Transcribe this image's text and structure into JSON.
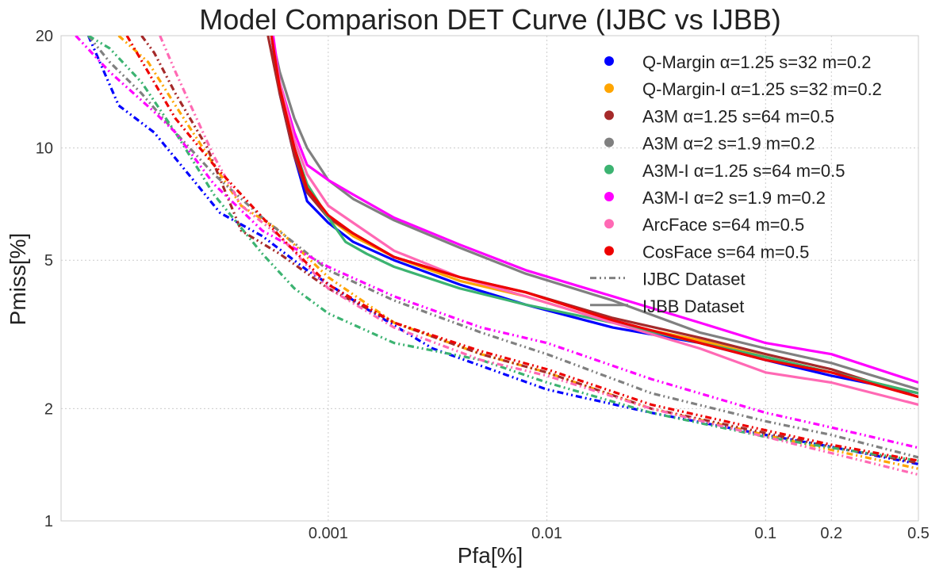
{
  "chart_data": {
    "type": "line",
    "title": "Model Comparison DET Curve (IJBC vs IJBB)",
    "xlabel": "Pfa[%]",
    "ylabel": "Pmiss[%]",
    "x_scale": "log",
    "y_scale": "log",
    "xlim": [
      6e-05,
      0.5
    ],
    "ylim": [
      1,
      20
    ],
    "x_ticks": [
      0.001,
      0.01,
      0.1,
      0.2,
      0.5
    ],
    "x_tick_labels": [
      "0.001",
      "0.01",
      "0.1",
      "0.2",
      "0.5"
    ],
    "y_ticks": [
      1,
      2,
      5,
      10,
      20
    ],
    "y_tick_labels": [
      "1",
      "2",
      "5",
      "10",
      "20"
    ],
    "grid": true,
    "legend_position": "top-right",
    "models": [
      {
        "name": "Q-Margin α=1.25 s=32 m=0.2",
        "color": "#0000ff"
      },
      {
        "name": "Q-Margin-I α=1.25 s=32 m=0.2",
        "color": "#ffa500"
      },
      {
        "name": "A3M α=1.25 s=64 m=0.5",
        "color": "#a52a2a"
      },
      {
        "name": "A3M α=2 s=1.9 m=0.2",
        "color": "#808080"
      },
      {
        "name": "A3M-I α=1.25 s=64 m=0.5",
        "color": "#3cb371"
      },
      {
        "name": "A3M-I α=2 s=1.9 m=0.2",
        "color": "#ff00ff"
      },
      {
        "name": "ArcFace s=64 m=0.5",
        "color": "#ff69b4"
      },
      {
        "name": "CosFace s=64 m=0.5",
        "color": "#ee0000"
      }
    ],
    "dataset_legend": [
      {
        "name": "IJBC Dataset",
        "style": "dashdotdot",
        "color": "#808080"
      },
      {
        "name": "IJBB Dataset",
        "style": "solid",
        "color": "#808080"
      }
    ],
    "series": [
      {
        "model": "Q-Margin α=1.25 s=32 m=0.2",
        "dataset": "IJBC",
        "x": [
          8e-05,
          0.00011,
          0.00016,
          0.00025,
          0.00032,
          0.0005,
          0.0008,
          0.0015,
          0.003,
          0.01,
          0.03,
          0.1,
          0.2,
          0.5
        ],
        "y": [
          20,
          13,
          11,
          8,
          6.7,
          5.8,
          4.7,
          3.7,
          2.9,
          2.25,
          1.95,
          1.7,
          1.58,
          1.42
        ]
      },
      {
        "model": "Q-Margin-I α=1.25 s=32 m=0.2",
        "dataset": "IJBC",
        "x": [
          0.00011,
          0.00015,
          0.0002,
          0.0003,
          0.0004,
          0.0006,
          0.001,
          0.002,
          0.005,
          0.01,
          0.03,
          0.1,
          0.2,
          0.5
        ],
        "y": [
          20,
          17,
          13,
          9,
          7,
          6,
          4.5,
          3.4,
          2.8,
          2.5,
          2.0,
          1.7,
          1.55,
          1.38
        ]
      },
      {
        "model": "A3M α=1.25 s=64 m=0.5",
        "dataset": "IJBC",
        "x": [
          0.00014,
          0.00016,
          0.0002,
          0.00028,
          0.0004,
          0.0006,
          0.001,
          0.002,
          0.005,
          0.01,
          0.03,
          0.1,
          0.2,
          0.5
        ],
        "y": [
          20,
          18,
          14,
          10,
          6,
          5.2,
          4.2,
          3.4,
          2.8,
          2.5,
          2.0,
          1.72,
          1.58,
          1.43
        ]
      },
      {
        "model": "A3M α=2 s=1.9 m=0.2",
        "dataset": "IJBC",
        "x": [
          8e-05,
          0.0001,
          0.00014,
          0.0002,
          0.0003,
          0.0005,
          0.001,
          0.002,
          0.005,
          0.01,
          0.03,
          0.1,
          0.2,
          0.5
        ],
        "y": [
          20,
          17,
          14,
          11,
          8.5,
          6.5,
          4.7,
          3.9,
          3.2,
          2.8,
          2.2,
          1.85,
          1.7,
          1.48
        ]
      },
      {
        "model": "A3M-I α=1.25 s=64 m=0.5",
        "dataset": "IJBC",
        "x": [
          8e-05,
          0.0001,
          0.00014,
          0.0002,
          0.0003,
          0.0005,
          0.0007,
          0.001,
          0.002,
          0.005,
          0.01,
          0.03,
          0.1,
          0.2,
          0.5
        ],
        "y": [
          20,
          18.5,
          15,
          11,
          7.5,
          5.2,
          4.2,
          3.6,
          3.0,
          2.7,
          2.35,
          1.95,
          1.68,
          1.57,
          1.45
        ]
      },
      {
        "model": "A3M-I α=2 s=1.9 m=0.2",
        "dataset": "IJBC",
        "x": [
          7e-05,
          0.0001,
          0.00016,
          0.0002,
          0.0003,
          0.0005,
          0.001,
          0.002,
          0.005,
          0.01,
          0.03,
          0.1,
          0.2,
          0.5
        ],
        "y": [
          20,
          16,
          12.5,
          11,
          8,
          6,
          4.8,
          4.0,
          3.3,
          3.0,
          2.4,
          1.95,
          1.78,
          1.57
        ]
      },
      {
        "model": "ArcFace s=64 m=0.5",
        "dataset": "IJBC",
        "x": [
          0.00017,
          0.0002,
          0.00025,
          0.0003,
          0.0004,
          0.0006,
          0.001,
          0.002,
          0.005,
          0.01,
          0.03,
          0.1,
          0.2,
          0.5
        ],
        "y": [
          20,
          16,
          12,
          9.5,
          7,
          5.8,
          4.2,
          3.3,
          2.7,
          2.45,
          2.0,
          1.68,
          1.52,
          1.33
        ]
      },
      {
        "model": "CosFace s=64 m=0.5",
        "dataset": "IJBC",
        "x": [
          0.00012,
          0.00016,
          0.0002,
          0.0003,
          0.0004,
          0.0006,
          0.001,
          0.002,
          0.005,
          0.01,
          0.03,
          0.1,
          0.2,
          0.5
        ],
        "y": [
          20,
          15,
          12,
          9,
          7.5,
          5.8,
          4.3,
          3.4,
          2.85,
          2.55,
          2.05,
          1.75,
          1.6,
          1.45
        ]
      },
      {
        "model": "Q-Margin α=1.25 s=32 m=0.2",
        "dataset": "IJBB",
        "x": [
          0.00055,
          0.0006,
          0.0007,
          0.0008,
          0.001,
          0.0013,
          0.002,
          0.004,
          0.008,
          0.02,
          0.05,
          0.1,
          0.2,
          0.5
        ],
        "y": [
          20,
          14,
          9.5,
          7.2,
          6.3,
          5.6,
          5.0,
          4.3,
          3.8,
          3.3,
          3.0,
          2.7,
          2.45,
          2.2
        ]
      },
      {
        "model": "Q-Margin-I α=1.25 s=32 m=0.2",
        "dataset": "IJBB",
        "x": [
          0.00055,
          0.0006,
          0.0007,
          0.0008,
          0.001,
          0.0013,
          0.002,
          0.004,
          0.008,
          0.02,
          0.05,
          0.1,
          0.2,
          0.5
        ],
        "y": [
          20,
          15,
          10,
          8,
          6.5,
          5.8,
          5.1,
          4.4,
          4.0,
          3.4,
          3.05,
          2.75,
          2.5,
          2.2
        ]
      },
      {
        "model": "A3M α=1.25 s=64 m=0.5",
        "dataset": "IJBB",
        "x": [
          0.00053,
          0.0006,
          0.0007,
          0.0008,
          0.001,
          0.0013,
          0.002,
          0.004,
          0.008,
          0.02,
          0.05,
          0.1,
          0.2,
          0.5
        ],
        "y": [
          20,
          14,
          9.5,
          7.6,
          6.5,
          5.9,
          5.1,
          4.5,
          4.1,
          3.5,
          3.1,
          2.8,
          2.55,
          2.15
        ]
      },
      {
        "model": "A3M α=2 s=1.9 m=0.2",
        "dataset": "IJBB",
        "x": [
          0.00055,
          0.0006,
          0.0007,
          0.0008,
          0.001,
          0.0013,
          0.002,
          0.004,
          0.008,
          0.02,
          0.05,
          0.1,
          0.2,
          0.5
        ],
        "y": [
          20,
          16,
          12,
          10,
          8.2,
          7.3,
          6.4,
          5.4,
          4.6,
          3.9,
          3.2,
          2.9,
          2.65,
          2.25
        ]
      },
      {
        "model": "A3M-I α=1.25 s=64 m=0.5",
        "dataset": "IJBB",
        "x": [
          0.00055,
          0.0006,
          0.0007,
          0.0008,
          0.001,
          0.0012,
          0.0015,
          0.002,
          0.004,
          0.008,
          0.02,
          0.05,
          0.1,
          0.2,
          0.5
        ],
        "y": [
          20,
          14.5,
          10,
          8,
          6.5,
          5.6,
          5.2,
          4.8,
          4.2,
          3.8,
          3.4,
          3.0,
          2.75,
          2.5,
          2.2
        ]
      },
      {
        "model": "A3M-I α=2 s=1.9 m=0.2",
        "dataset": "IJBB",
        "x": [
          0.00056,
          0.0006,
          0.0007,
          0.0008,
          0.001,
          0.0013,
          0.002,
          0.004,
          0.008,
          0.02,
          0.05,
          0.1,
          0.2,
          0.5
        ],
        "y": [
          20,
          15,
          11,
          9,
          8.2,
          7.5,
          6.5,
          5.5,
          4.7,
          4.0,
          3.4,
          3.0,
          2.8,
          2.35
        ]
      },
      {
        "model": "ArcFace s=64 m=0.5",
        "dataset": "IJBB",
        "x": [
          0.00055,
          0.0006,
          0.0007,
          0.0008,
          0.001,
          0.0013,
          0.002,
          0.004,
          0.008,
          0.02,
          0.05,
          0.1,
          0.2,
          0.5
        ],
        "y": [
          20,
          15,
          10.5,
          8.5,
          7,
          6.3,
          5.3,
          4.5,
          4.0,
          3.4,
          2.9,
          2.5,
          2.35,
          2.05
        ]
      },
      {
        "model": "CosFace s=64 m=0.5",
        "dataset": "IJBB",
        "x": [
          0.00055,
          0.0006,
          0.0007,
          0.0008,
          0.001,
          0.0013,
          0.002,
          0.004,
          0.008,
          0.02,
          0.05,
          0.1,
          0.2,
          0.5
        ],
        "y": [
          20,
          14.5,
          10,
          7.8,
          6.6,
          5.9,
          5.1,
          4.5,
          4.1,
          3.45,
          3.0,
          2.7,
          2.5,
          2.15
        ]
      }
    ]
  }
}
